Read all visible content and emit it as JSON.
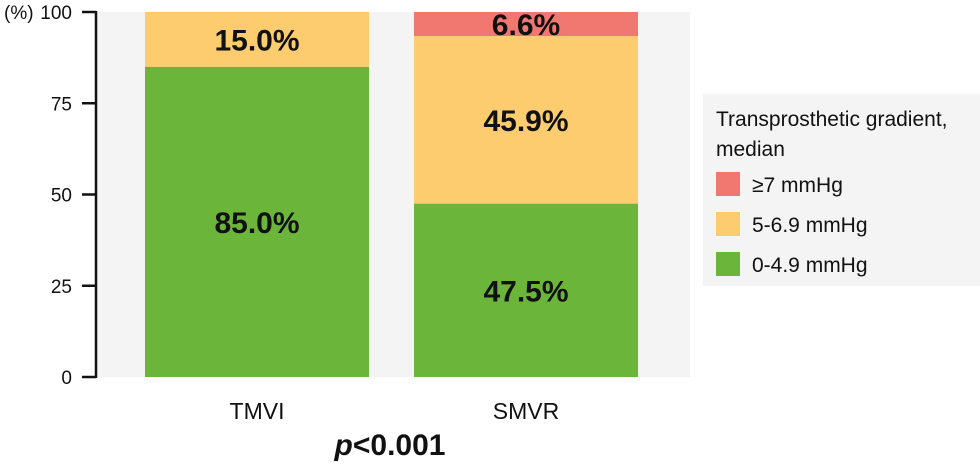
{
  "chart_data": {
    "type": "bar",
    "stacked": true,
    "categories": [
      "TMVI",
      "SMVR"
    ],
    "series": [
      {
        "name": "0-4.9 mmHg",
        "color": "#6bb53b",
        "values": [
          85.0,
          47.5
        ],
        "labels": [
          "85.0%",
          "47.5%"
        ]
      },
      {
        "name": "5-6.9 mmHg",
        "color": "#fccc6e",
        "values": [
          15.0,
          45.9
        ],
        "labels": [
          "15.0%",
          "45.9%"
        ]
      },
      {
        "name": "≥7 mmHg",
        "color": "#f07870",
        "values": [
          0,
          6.6
        ],
        "labels": [
          "",
          "6.6%"
        ]
      }
    ],
    "ylabel": "(%)",
    "ylim": [
      0,
      100
    ],
    "yticks": [
      0,
      25,
      50,
      75,
      100
    ],
    "ytick_labels": [
      "0",
      "25",
      "50",
      "75",
      "100"
    ],
    "legend": {
      "title_line1": "Transprosthetic gradient,",
      "title_line2": "median",
      "placement": "right",
      "order": [
        "≥7 mmHg",
        "5-6.9 mmHg",
        "0-4.9 mmHg"
      ]
    },
    "annotation": {
      "p_symbol": "p",
      "p_rest": "<0.001"
    }
  }
}
